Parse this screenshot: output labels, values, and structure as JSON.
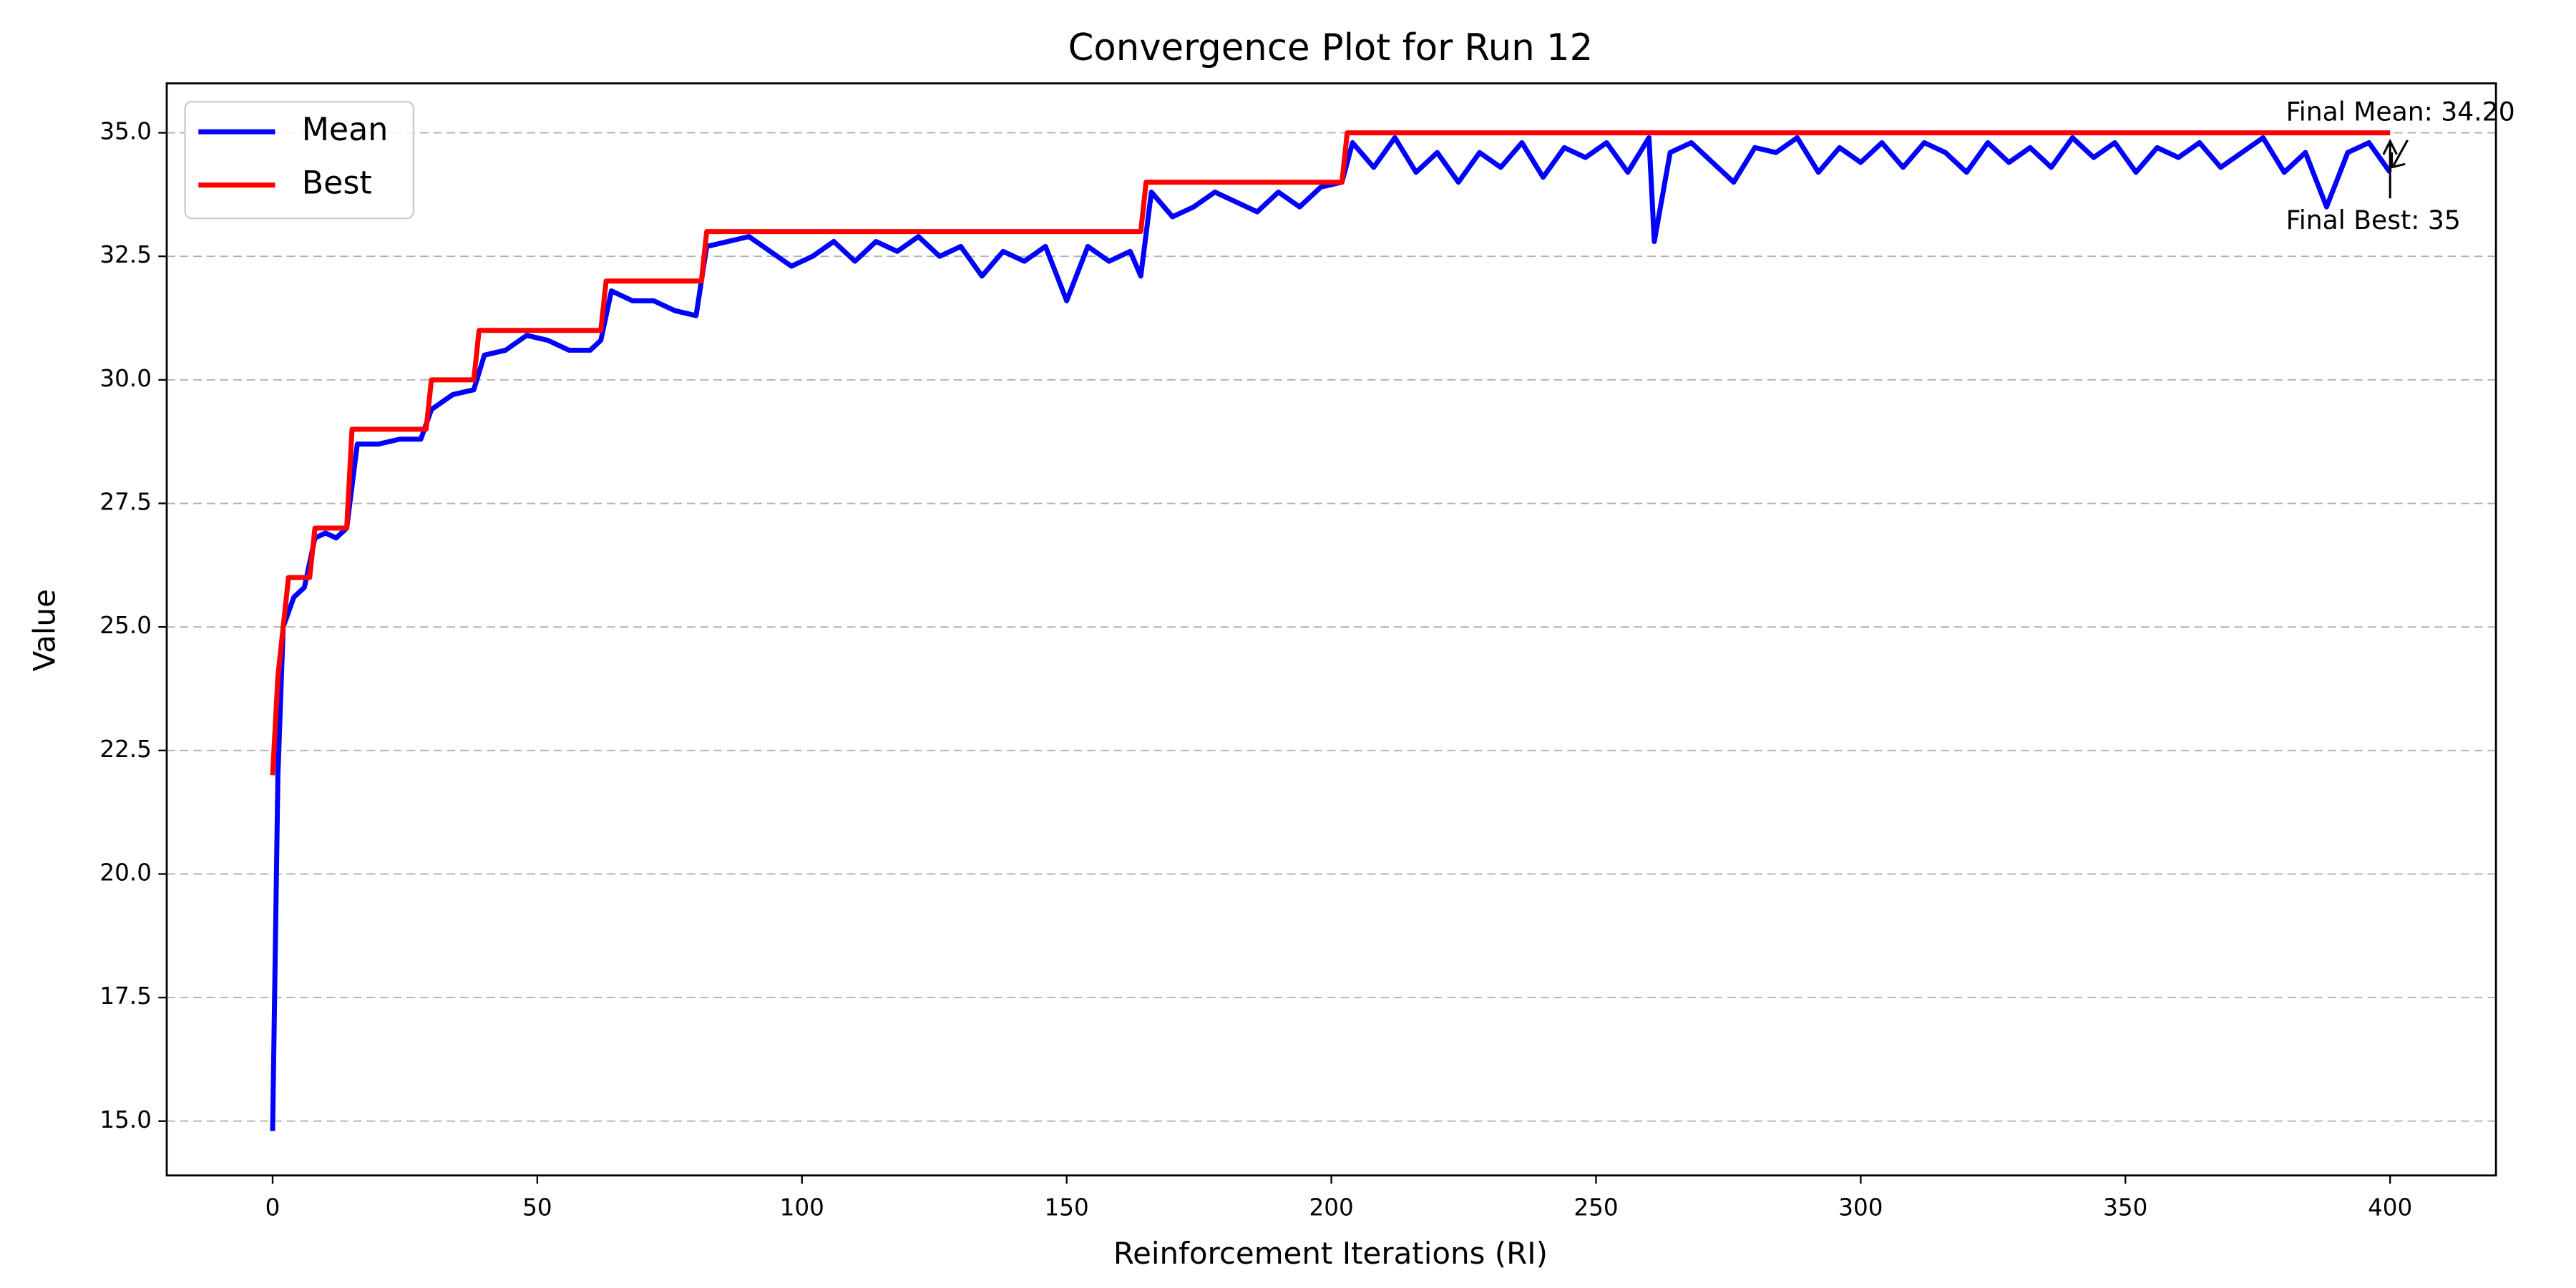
{
  "chart_data": {
    "type": "line",
    "title": "Convergence Plot for Run 12",
    "xlabel": "Reinforcement Iterations (RI)",
    "ylabel": "Value",
    "xlim": [
      -20,
      420
    ],
    "ylim": [
      13.9,
      36.0
    ],
    "xticks": [
      0,
      50,
      100,
      150,
      200,
      250,
      300,
      350,
      400
    ],
    "yticks": [
      {
        "value": 15,
        "label": "15.0"
      },
      17.5,
      {
        "value": 20,
        "label": "20.0"
      },
      22.5,
      {
        "value": 25,
        "label": "25.0"
      },
      27.5,
      {
        "value": 30,
        "label": "30.0"
      },
      32.5,
      {
        "value": 35,
        "label": "35.0"
      }
    ],
    "grid": true,
    "legend": "upper left",
    "series": [
      {
        "name": "Mean",
        "color": "#0000ff",
        "x": [
          0,
          1,
          2,
          4,
          6,
          8,
          10,
          12,
          14,
          16,
          20,
          24,
          28,
          30,
          34,
          38,
          40,
          44,
          48,
          52,
          56,
          60,
          62,
          64,
          68,
          72,
          76,
          80,
          82,
          86,
          90,
          94,
          98,
          102,
          106,
          110,
          114,
          118,
          122,
          126,
          130,
          134,
          138,
          142,
          146,
          150,
          154,
          158,
          162,
          164,
          166,
          170,
          174,
          178,
          182,
          186,
          190,
          194,
          198,
          202,
          204,
          208,
          212,
          216,
          220,
          224,
          228,
          232,
          236,
          240,
          244,
          248,
          252,
          256,
          260,
          261,
          264,
          268,
          272,
          276,
          280,
          284,
          288,
          292,
          296,
          300,
          304,
          308,
          312,
          316,
          320,
          324,
          328,
          332,
          336,
          340,
          344,
          348,
          352,
          356,
          360,
          364,
          368,
          372,
          376,
          380,
          384,
          388,
          392,
          396,
          400
        ],
        "values": [
          14.8,
          22.0,
          25.0,
          25.6,
          25.8,
          26.8,
          26.9,
          26.8,
          27.0,
          28.7,
          28.7,
          28.8,
          28.8,
          29.4,
          29.7,
          29.8,
          30.5,
          30.6,
          30.9,
          30.8,
          30.6,
          30.6,
          30.8,
          31.8,
          31.6,
          31.6,
          31.4,
          31.3,
          32.7,
          32.8,
          32.9,
          32.6,
          32.3,
          32.5,
          32.8,
          32.4,
          32.8,
          32.6,
          32.9,
          32.5,
          32.7,
          32.1,
          32.6,
          32.4,
          32.7,
          31.6,
          32.7,
          32.4,
          32.6,
          32.1,
          33.8,
          33.3,
          33.5,
          33.8,
          33.6,
          33.4,
          33.8,
          33.5,
          33.9,
          34.0,
          34.8,
          34.3,
          34.9,
          34.2,
          34.6,
          34.0,
          34.6,
          34.3,
          34.8,
          34.1,
          34.7,
          34.5,
          34.8,
          34.2,
          34.9,
          32.8,
          34.6,
          34.8,
          34.4,
          34.0,
          34.7,
          34.6,
          34.9,
          34.2,
          34.7,
          34.4,
          34.8,
          34.3,
          34.8,
          34.6,
          34.2,
          34.8,
          34.4,
          34.7,
          34.3,
          34.9,
          34.5,
          34.8,
          34.2,
          34.7,
          34.5,
          34.8,
          34.3,
          34.6,
          34.9,
          34.2,
          34.6,
          33.5,
          34.6,
          34.8,
          34.2
        ]
      },
      {
        "name": "Best",
        "color": "#ff0000",
        "x": [
          0,
          1,
          2,
          3,
          7,
          8,
          14,
          15,
          29,
          30,
          38,
          39,
          62,
          63,
          81,
          82,
          164,
          165,
          202,
          203,
          400
        ],
        "values": [
          22,
          24,
          25,
          26,
          26,
          27,
          27,
          29,
          29,
          30,
          30,
          31,
          31,
          32,
          32,
          33,
          33,
          34,
          34,
          35,
          35
        ]
      }
    ],
    "annotations": [
      "Final Mean: 34.20",
      "Final Best: 35"
    ]
  }
}
